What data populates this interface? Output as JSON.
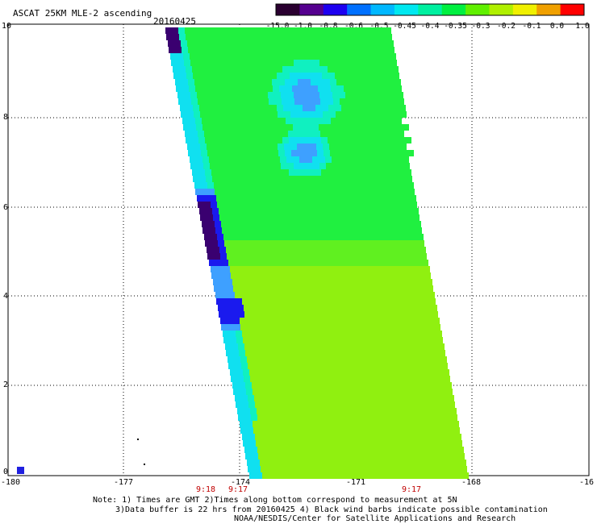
{
  "header": {
    "title": "ASCAT 25KM MLE-2 ascending",
    "date": "20160425"
  },
  "colorbar": {
    "labels": [
      "-15.0",
      "-1.0",
      "-0.8",
      "-0.6",
      "-0.5",
      "-0.45",
      "-0.4",
      "-0.35",
      "-0.3",
      "-0.2",
      "-0.1",
      "0.0",
      "1.0"
    ],
    "colors": [
      "#2a0030",
      "#55008f",
      "#1d00f0",
      "#0070ff",
      "#00b8ff",
      "#00e8f0",
      "#00f0a0",
      "#00f040",
      "#60f000",
      "#b0f000",
      "#f0f000",
      "#f0a000",
      "#ff0000"
    ]
  },
  "map": {
    "lon_range": [
      -180,
      -165
    ],
    "lat_range": [
      0,
      10
    ],
    "x_ticks": [
      "-180",
      "-177",
      "-174",
      "-171",
      "-168",
      "-16"
    ],
    "y_ticks": [
      "10",
      "8",
      "6",
      "4",
      "2",
      "0"
    ],
    "grid": true,
    "pass_colors": {
      "deep": "#3a0070",
      "blue": "#1a1aee",
      "skyblue": "#3ea0ff",
      "cyan": "#10e0f0",
      "aqua": "#10f0c0",
      "green": "#20f040",
      "limegreen": "#60f020",
      "lime": "#90f010"
    }
  },
  "times": {
    "t1": "9:18",
    "t2": "9:17",
    "t3": "9:17"
  },
  "notes": {
    "line1": "Note: 1) Times are GMT 2)Times along bottom correspond to measurement at 5N",
    "line2": "3)Data buffer is 22 hrs from 20160425 4) Black wind barbs indicate possible contamination",
    "line3": "NOAA/NESDIS/Center for Satellite Applications and Research"
  }
}
